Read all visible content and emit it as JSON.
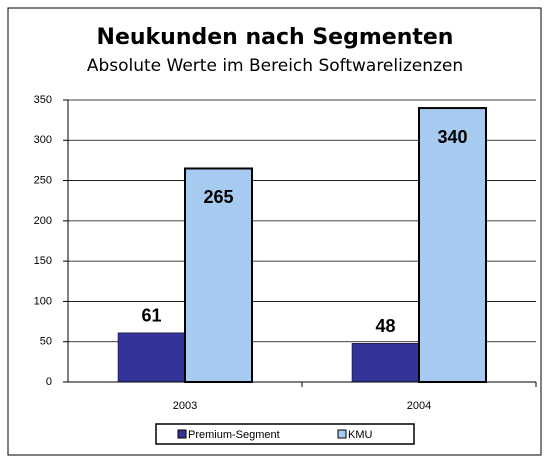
{
  "chart_data": {
    "type": "bar",
    "title": "Neukunden nach Segmenten",
    "subtitle": "Absolute Werte im Bereich Softwarelizenzen",
    "categories": [
      "2003",
      "2004"
    ],
    "series": [
      {
        "name": "Premium-Segment",
        "color": "#333399",
        "values": [
          61,
          48
        ]
      },
      {
        "name": "KMU",
        "color": "#a6caf0",
        "values": [
          265,
          340
        ]
      }
    ],
    "ylim": [
      0,
      350
    ],
    "yticks": [
      0,
      50,
      100,
      150,
      200,
      250,
      300,
      350
    ],
    "grid": true,
    "legend": "bottom"
  }
}
